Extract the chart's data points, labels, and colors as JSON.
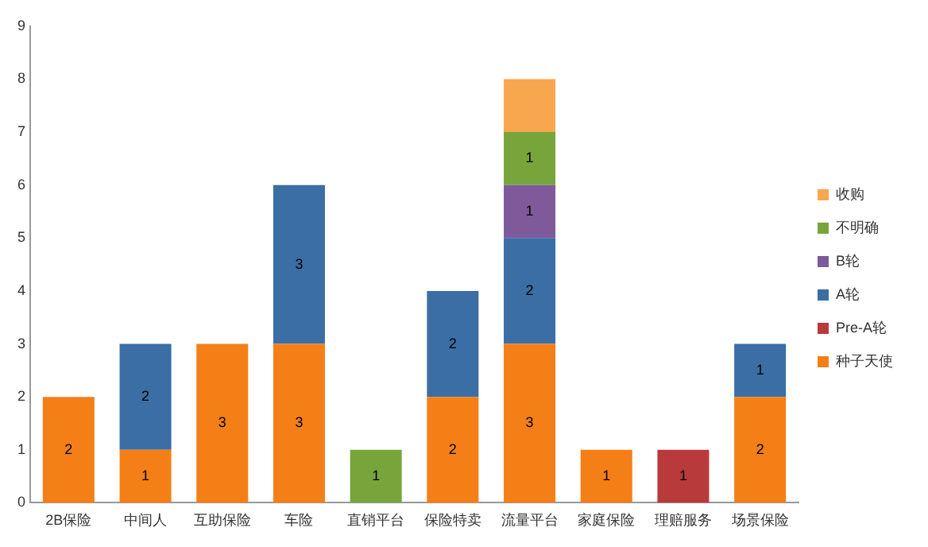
{
  "chart_data": {
    "type": "bar",
    "stacked": true,
    "categories": [
      "2B保险",
      "中间人",
      "互助保险",
      "车险",
      "直销平台",
      "保险特卖",
      "流量平台",
      "家庭保险",
      "理赔服务",
      "场景保险"
    ],
    "series": [
      {
        "name": "种子天使",
        "color": "#f57f17",
        "values": [
          2,
          1,
          3,
          3,
          null,
          2,
          3,
          1,
          null,
          2
        ],
        "value_labels": [
          "2",
          "1",
          "3",
          "3",
          null,
          "2",
          "3",
          "1",
          null,
          "2"
        ]
      },
      {
        "name": "Pre-A轮",
        "color": "#b93a3a",
        "values": [
          null,
          null,
          null,
          null,
          null,
          null,
          null,
          null,
          1,
          null
        ],
        "value_labels": [
          null,
          null,
          null,
          null,
          null,
          null,
          null,
          null,
          "1",
          null
        ]
      },
      {
        "name": "A轮",
        "color": "#3a6ea5",
        "values": [
          null,
          2,
          null,
          3,
          null,
          2,
          2,
          null,
          null,
          1
        ],
        "value_labels": [
          null,
          "2",
          null,
          "3",
          null,
          "2",
          "2",
          null,
          null,
          "1"
        ]
      },
      {
        "name": "B轮",
        "color": "#7e5a9b",
        "values": [
          null,
          null,
          null,
          null,
          null,
          null,
          1,
          null,
          null,
          null
        ],
        "value_labels": [
          null,
          null,
          null,
          null,
          null,
          null,
          "1",
          null,
          null,
          null
        ]
      },
      {
        "name": "不明确",
        "color": "#78a43c",
        "values": [
          null,
          null,
          null,
          null,
          1,
          null,
          1,
          null,
          null,
          null
        ],
        "value_labels": [
          null,
          null,
          null,
          null,
          "1",
          null,
          "1",
          null,
          null,
          null
        ]
      },
      {
        "name": "收购",
        "color": "#f8a74f",
        "values": [
          null,
          null,
          null,
          null,
          null,
          null,
          1,
          null,
          null,
          null
        ]
      }
    ],
    "ylim": [
      0,
      9
    ],
    "yticks": [
      0,
      1,
      2,
      3,
      4,
      5,
      6,
      7,
      8,
      9
    ],
    "grid": false,
    "legend": "right"
  }
}
